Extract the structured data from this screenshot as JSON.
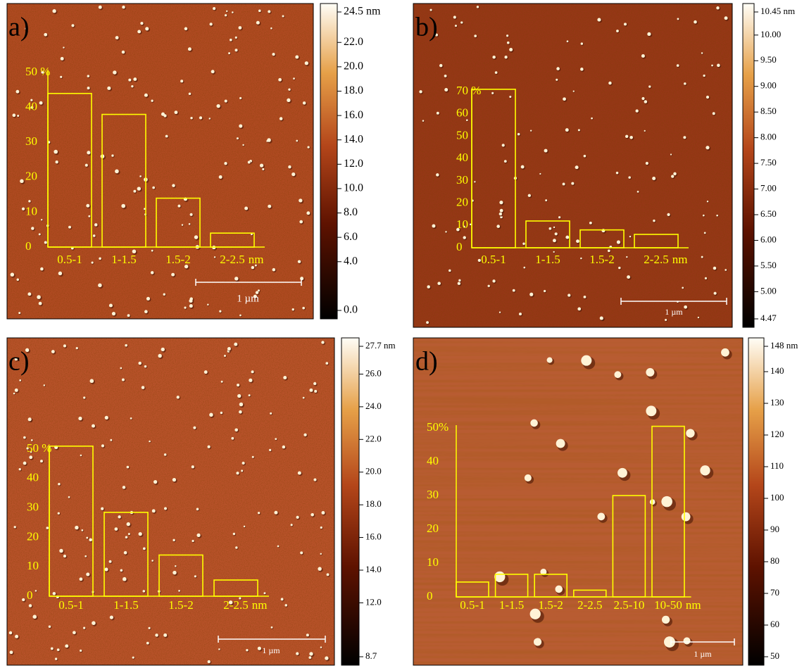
{
  "chart_data": [
    {
      "type": "bar",
      "panel_label": "a)",
      "categories": [
        "0.5-1",
        "1-1.5",
        "1.5-2",
        "2-2.5"
      ],
      "x_unit": "nm",
      "values": [
        44,
        38,
        14,
        4
      ],
      "color": "#ffff00",
      "ylim": [
        0,
        50
      ],
      "yticks": [
        0,
        10,
        20,
        30,
        40,
        {
          "value": 50,
          "label": "50 %"
        }
      ],
      "colorbar": {
        "lim": [
          0,
          24.5
        ],
        "ticks": [
          {
            "value": 0,
            "label": "0.0"
          },
          {
            "value": 4,
            "label": "4.0"
          },
          {
            "value": 6,
            "label": "6.0"
          },
          {
            "value": 8,
            "label": "8.0"
          },
          {
            "value": 10,
            "label": "10.0"
          },
          {
            "value": 12,
            "label": "12.0"
          },
          {
            "value": 14,
            "label": "14.0"
          },
          {
            "value": 16,
            "label": "16.0"
          },
          {
            "value": 18,
            "label": "18.0"
          },
          {
            "value": 20,
            "label": "20.0"
          },
          {
            "value": 22,
            "label": "22.0"
          },
          {
            "value": 24.5,
            "label": "24.5 nm"
          }
        ]
      },
      "scale_bar": "1 µm"
    },
    {
      "type": "bar",
      "panel_label": "b)",
      "categories": [
        "0.5-1",
        "1-1.5",
        "1.5-2",
        "2-2.5"
      ],
      "x_unit": "nm",
      "values": [
        71,
        12,
        8,
        6
      ],
      "color": "#ffff00",
      "ylim": [
        0,
        70
      ],
      "yticks": [
        0,
        10,
        20,
        30,
        40,
        50,
        60,
        {
          "value": 70,
          "label": "70 %"
        }
      ],
      "colorbar": {
        "lim": [
          4.47,
          10.45
        ],
        "ticks": [
          4.47,
          {
            "value": 5,
            "label": "5.00"
          },
          {
            "value": 5.5,
            "label": "5.50"
          },
          {
            "value": 6,
            "label": "6.00"
          },
          {
            "value": 6.5,
            "label": "6.50"
          },
          {
            "value": 7,
            "label": "7.00"
          },
          {
            "value": 7.5,
            "label": "7.50"
          },
          {
            "value": 8,
            "label": "8.00"
          },
          {
            "value": 8.5,
            "label": "8.50"
          },
          {
            "value": 9,
            "label": "9.00"
          },
          {
            "value": 9.5,
            "label": "9.50"
          },
          {
            "value": 10,
            "label": "10.00"
          },
          {
            "value": 10.45,
            "label": "10.45 nm"
          }
        ]
      },
      "scale_bar": "1 µm"
    },
    {
      "type": "bar",
      "panel_label": "c)",
      "categories": [
        "0.5-1",
        "1-1.5",
        "1.5-2",
        "2-2.5"
      ],
      "x_unit": "nm",
      "values": [
        51,
        28.5,
        14,
        5.5
      ],
      "color": "#ffff00",
      "ylim": [
        0,
        50
      ],
      "yticks": [
        0,
        10,
        20,
        30,
        40,
        {
          "value": 50,
          "label": "50 %"
        }
      ],
      "colorbar": {
        "lim": [
          8.7,
          27.7
        ],
        "ticks": [
          8.7,
          {
            "value": 12,
            "label": "12.0"
          },
          {
            "value": 14,
            "label": "14.0"
          },
          {
            "value": 16,
            "label": "16.0"
          },
          {
            "value": 18,
            "label": "18.0"
          },
          {
            "value": 20,
            "label": "20.0"
          },
          {
            "value": 22,
            "label": "22.0"
          },
          {
            "value": 24,
            "label": "24.0"
          },
          {
            "value": 26,
            "label": "26.0"
          },
          {
            "value": 27.7,
            "label": "27.7 nm"
          }
        ]
      },
      "scale_bar": "1 µm"
    },
    {
      "type": "bar",
      "panel_label": "d)",
      "categories": [
        "0.5-1",
        "1-1.5",
        "1.5-2",
        "2-2.5",
        "2.5-10",
        "10-50"
      ],
      "x_unit": "nm",
      "values": [
        4.4,
        6.7,
        6.7,
        2,
        30,
        50.5
      ],
      "color": "#ffff00",
      "ylim": [
        0,
        50
      ],
      "yticks": [
        0,
        10,
        20,
        30,
        40,
        {
          "value": 50,
          "label": "50%"
        }
      ],
      "colorbar": {
        "lim": [
          50,
          148
        ],
        "ticks": [
          50,
          60,
          70,
          80,
          90,
          100,
          110,
          120,
          130,
          140,
          {
            "value": 148,
            "label": "148 nm"
          }
        ]
      },
      "scale_bar": "1 µm"
    }
  ]
}
